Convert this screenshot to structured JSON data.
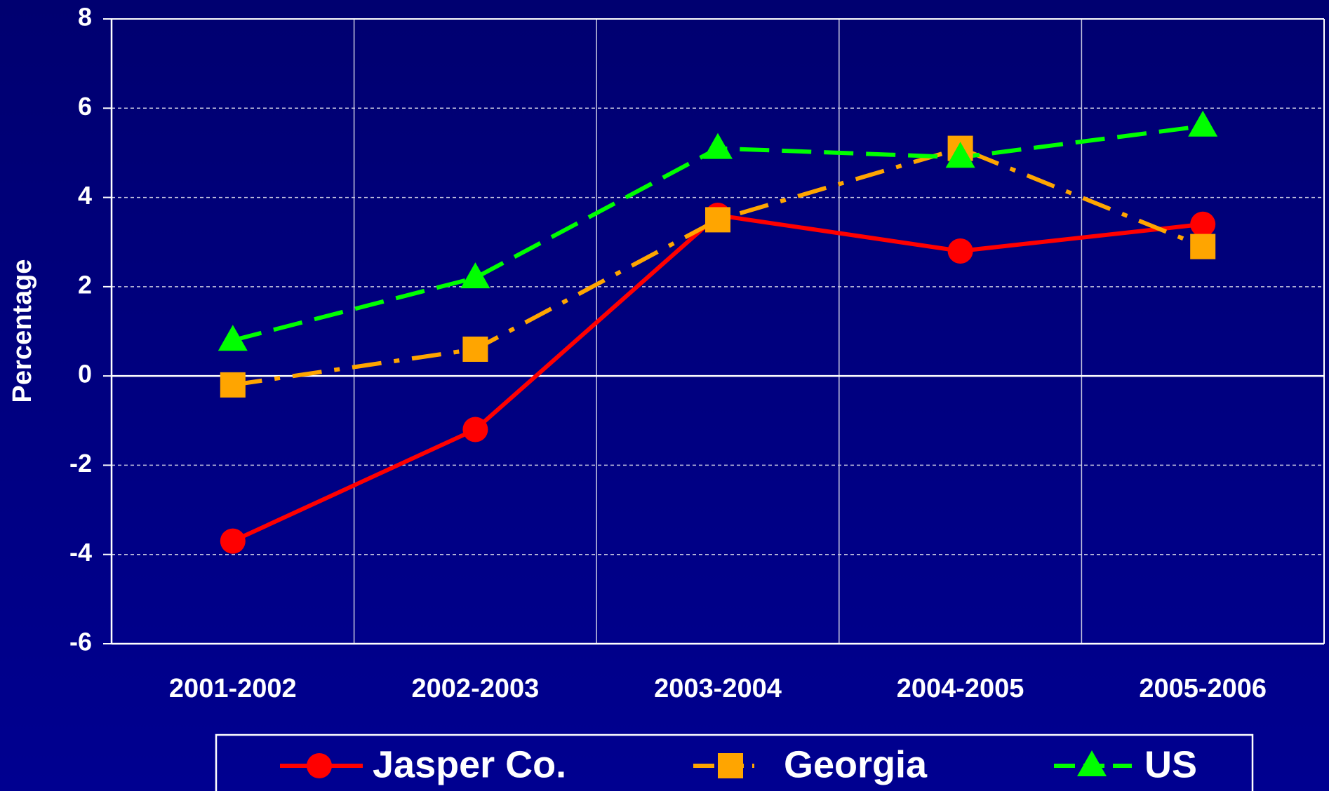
{
  "chart_data": {
    "type": "line",
    "y_label": "Percentage",
    "categories": [
      "2001-2002",
      "2002-2003",
      "2003-2004",
      "2004-2005",
      "2005-2006"
    ],
    "series": [
      {
        "name": "Jasper Co.",
        "color": "#ff0000",
        "marker": "circle",
        "dash": "solid",
        "values": [
          -3.7,
          -1.2,
          3.6,
          2.8,
          3.4
        ]
      },
      {
        "name": "Georgia",
        "color": "#ffa500",
        "marker": "square",
        "dash": "dashdot",
        "values": [
          -0.2,
          0.6,
          3.5,
          5.1,
          2.9
        ]
      },
      {
        "name": "US",
        "color": "#00ff00",
        "marker": "triangle",
        "dash": "dashed",
        "values": [
          0.8,
          2.2,
          5.1,
          4.9,
          5.6
        ]
      }
    ],
    "ylim": [
      -6,
      8
    ],
    "yticks": [
      -6,
      -4,
      -2,
      0,
      2,
      4,
      6,
      8
    ],
    "grid": true,
    "legend": "bottom"
  }
}
